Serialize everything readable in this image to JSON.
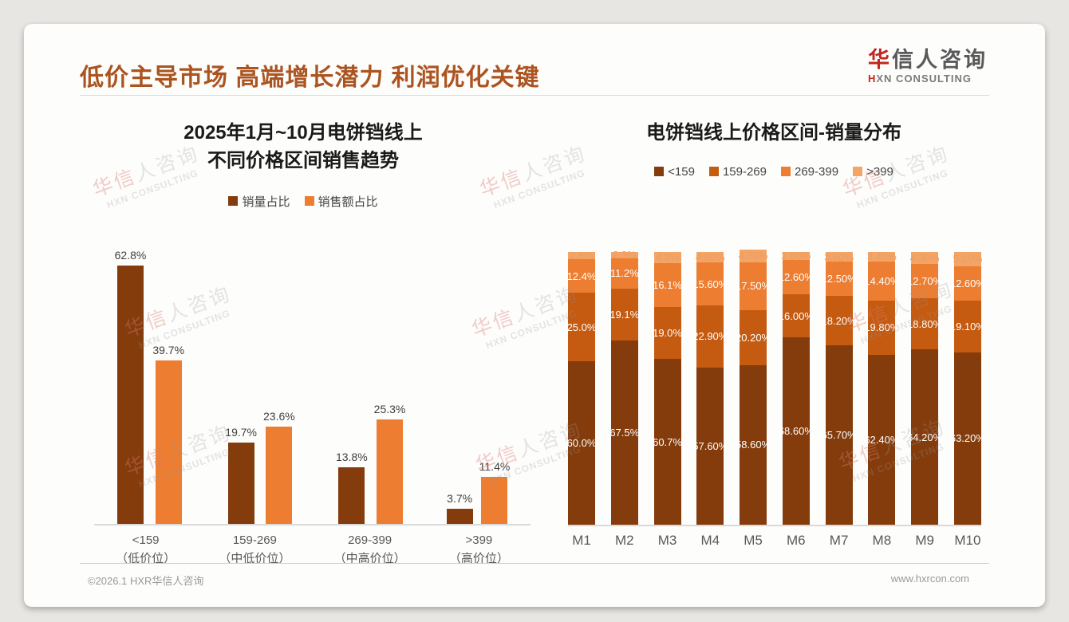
{
  "page": {
    "title": "低价主导市场 高端增长潜力 利润优化关键"
  },
  "logo": {
    "cn_red": "华",
    "cn_rest": "信人咨询",
    "en_red": "H",
    "en_rest": "XN CONSULTING"
  },
  "watermark": {
    "cn_red": "华信",
    "cn_rest": "人咨询",
    "en": "HXN CONSULTING"
  },
  "footer": {
    "left": "©2026.1 HXR华信人咨询",
    "right": "www.hxrcon.com"
  },
  "colors": {
    "title": "#ac5420",
    "dark_brown": "#843C0C",
    "rust": "#C55A11",
    "orange": "#ED7D31",
    "peach": "#F2A567",
    "axis_line": "#d9d9d9",
    "label_gray": "#595959"
  },
  "chart_data": [
    {
      "type": "bar",
      "title_lines": [
        "2025年1月~10月电饼铛线上",
        "不同价格区间销售趋势"
      ],
      "categories": [
        "<159",
        "159-269",
        "269-399",
        ">399"
      ],
      "category_subs": [
        "（低价位）",
        "（中低价位）",
        "（中高价位）",
        "（高价位）"
      ],
      "ylim": [
        0,
        66
      ],
      "grid": false,
      "legend_position": "top",
      "series": [
        {
          "name": "销量占比",
          "color": "#843C0C",
          "values": [
            62.8,
            19.7,
            13.8,
            3.7
          ],
          "labels": [
            "62.8%",
            "19.7%",
            "13.8%",
            "3.7%"
          ]
        },
        {
          "name": "销售额占比",
          "color": "#ED7D31",
          "values": [
            39.7,
            23.6,
            25.3,
            11.4
          ],
          "labels": [
            "39.7%",
            "23.6%",
            "25.3%",
            "11.4%"
          ]
        }
      ]
    },
    {
      "type": "stacked-bar",
      "title_lines": [
        "电饼铛线上价格区间-销量分布"
      ],
      "categories": [
        "M1",
        "M2",
        "M3",
        "M4",
        "M5",
        "M6",
        "M7",
        "M8",
        "M9",
        "M10"
      ],
      "ylim": [
        0,
        100
      ],
      "grid": false,
      "legend_position": "top",
      "stack_order": "bottom-to-top",
      "series": [
        {
          "name": "<159",
          "color": "#843C0C",
          "label_color": "#ffffff",
          "values": [
            60.0,
            67.5,
            60.7,
            57.6,
            58.6,
            68.6,
            65.7,
            62.4,
            64.2,
            63.2
          ],
          "labels": [
            "60.0%",
            "67.5%",
            "60.7%",
            "57.60%",
            "58.60%",
            "68.60%",
            "65.70%",
            "62.40%",
            "64.20%",
            "63.20%"
          ]
        },
        {
          "name": "159-269",
          "color": "#C55A11",
          "label_color": "#ffffff",
          "values": [
            25.0,
            19.1,
            19.0,
            22.9,
            20.2,
            16.0,
            18.2,
            19.8,
            18.8,
            19.1
          ],
          "labels": [
            "25.0%",
            "19.1%",
            "19.0%",
            "22.90%",
            "20.20%",
            "16.00%",
            "18.20%",
            "19.80%",
            "18.80%",
            "19.10%"
          ]
        },
        {
          "name": "269-399",
          "color": "#ED7D31",
          "label_color": "#ffffff",
          "values": [
            12.4,
            11.2,
            16.1,
            15.6,
            17.5,
            12.6,
            12.5,
            14.4,
            12.7,
            12.6
          ],
          "labels": [
            "12.4%",
            "11.2%",
            "16.1%",
            "15.60%",
            "17.50%",
            "12.60%",
            "12.50%",
            "14.40%",
            "12.70%",
            "12.60%"
          ]
        },
        {
          "name": ">399",
          "color": "#F2A567",
          "label_color": "#ee9c5f",
          "values": [
            2.6,
            2.3,
            4.3,
            4.0,
            4.7,
            2.8,
            3.6,
            3.4,
            4.3,
            5.1
          ],
          "labels": [
            "2.6%",
            "2.3%",
            "4.3%",
            "4.00%",
            "4.70%",
            "2.80%",
            "3.60%",
            "3.40%",
            "4.30%",
            "5.10%"
          ]
        }
      ]
    }
  ]
}
